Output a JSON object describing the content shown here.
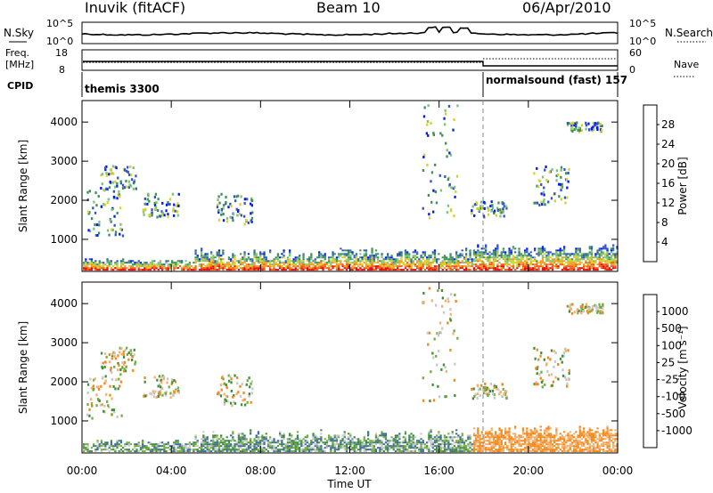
{
  "header": {
    "title_left": "Inuvik (fitACF)",
    "title_center": "Beam 10",
    "title_right": "06/Apr/2010"
  },
  "panels": {
    "sky": {
      "left_label": "N.Sky",
      "right_label": "N.Search",
      "ticks_left": [
        "10^5",
        "10^0"
      ],
      "ticks_right": [
        "10^5",
        "10^0"
      ]
    },
    "freq": {
      "left_label_1": "Freq.",
      "left_label_2": "[MHz]",
      "right_label": "Nave",
      "ticks_left": [
        "18",
        "8"
      ],
      "ticks_right": [
        "60",
        "0"
      ]
    },
    "cpid": {
      "left_label": "CPID",
      "mode_1": "themis 3300",
      "mode_2": "normalsound (fast) 157"
    }
  },
  "colors": {
    "power_scale": [
      "#0018ff",
      "#2f55c8",
      "#3f8f5a",
      "#7ec27a",
      "#d6d22a",
      "#f39b1f",
      "#f15a16",
      "#e60b0b"
    ],
    "velocity_scale": [
      "#e11010",
      "#f04020",
      "#f48818",
      "#f4b070",
      "#c8c8c8",
      "#6fae3f",
      "#3f8f3a",
      "#3a6aa0",
      "#1e40c8"
    ],
    "line": "#000000"
  },
  "chart_data": [
    {
      "type": "heatmap",
      "name": "power-panel",
      "xlabel": "",
      "ylabel": "Slant Range [km]",
      "x_ticks": [
        "00:00",
        "04:00",
        "08:00",
        "12:00",
        "16:00",
        "20:00",
        "00:00"
      ],
      "y_ticks": [
        "1000",
        "2000",
        "3000",
        "4000"
      ],
      "ylim": [
        180,
        4550
      ],
      "colorbar_label": "Power [dB]",
      "colorbar_ticks": [
        "4",
        "8",
        "12",
        "16",
        "20",
        "24",
        "28"
      ],
      "colorbar_range": [
        0,
        32
      ]
    },
    {
      "type": "heatmap",
      "name": "velocity-panel",
      "xlabel": "Time UT",
      "ylabel": "Slant Range [km]",
      "x_ticks": [
        "00:00",
        "04:00",
        "08:00",
        "12:00",
        "16:00",
        "20:00",
        "00:00"
      ],
      "y_ticks": [
        "1000",
        "2000",
        "3000",
        "4000"
      ],
      "ylim": [
        180,
        4550
      ],
      "colorbar_label": "Velocity [m s⁻¹]",
      "colorbar_ticks": [
        "1000",
        "500",
        "100",
        "25",
        "-25",
        "-100",
        "-500",
        "-1000"
      ]
    }
  ]
}
